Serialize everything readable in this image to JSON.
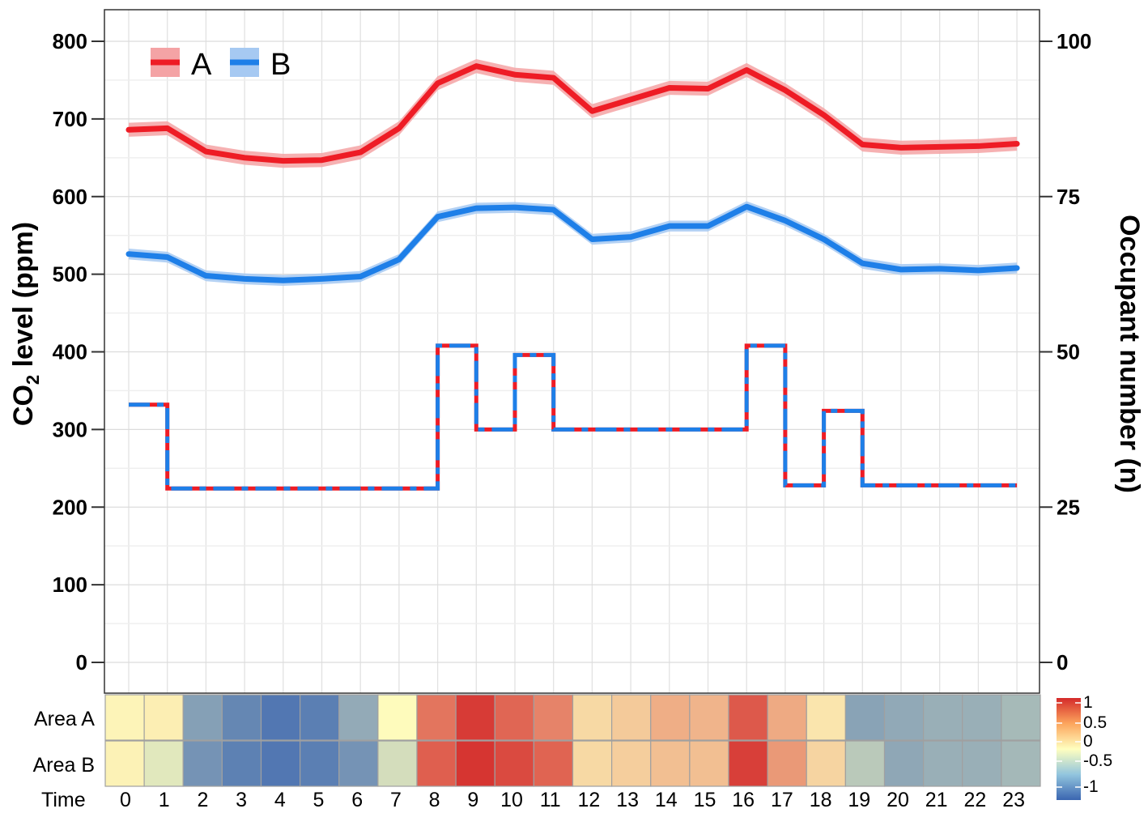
{
  "chart_data": [
    {
      "type": "line",
      "ylabel_main": "CO",
      "ylabel_sub": "2",
      "ylabel_rest": " level (ppm)",
      "y2label": "Occupant number (n)",
      "ylim": [
        0,
        800
      ],
      "y_ticks": [
        "0",
        "100",
        "200",
        "300",
        "400",
        "500",
        "600",
        "700",
        "800"
      ],
      "y2lim": [
        0,
        100
      ],
      "y2_ticks": [
        "0",
        "25",
        "50",
        "75",
        "100"
      ],
      "x": [
        0,
        1,
        2,
        3,
        4,
        5,
        6,
        7,
        8,
        9,
        10,
        11,
        12,
        13,
        14,
        15,
        16,
        17,
        18,
        19,
        20,
        21,
        22,
        23
      ],
      "legend_position": "top-left",
      "grid": true,
      "series": [
        {
          "name": "A",
          "axis": "left",
          "color": "#ee1c25",
          "band_color": "#f4a3a5",
          "values": [
            686,
            688,
            658,
            650,
            646,
            647,
            657,
            688,
            746,
            768,
            757,
            753,
            710,
            725,
            740,
            739,
            763,
            737,
            705,
            667,
            663,
            664,
            665,
            668
          ],
          "band": 9
        },
        {
          "name": "B",
          "axis": "left",
          "color": "#1e7fe8",
          "band_color": "#a6c9f2",
          "values": [
            526,
            522,
            498,
            494,
            492,
            494,
            497,
            519,
            574,
            585,
            586,
            583,
            545,
            548,
            562,
            562,
            587,
            569,
            545,
            514,
            506,
            507,
            505,
            508
          ],
          "band": 7
        }
      ],
      "occupancy": {
        "axis": "right",
        "colors": [
          "#ee1c25",
          "#1e7fe8"
        ],
        "steps": [
          {
            "from": 0,
            "to": 1,
            "value": 41.5
          },
          {
            "from": 1,
            "to": 8,
            "value": 28
          },
          {
            "from": 8,
            "to": 9,
            "value": 51
          },
          {
            "from": 9,
            "to": 10,
            "value": 37.5
          },
          {
            "from": 10,
            "to": 11,
            "value": 49.5
          },
          {
            "from": 11,
            "to": 16,
            "value": 37.5
          },
          {
            "from": 16,
            "to": 17,
            "value": 51
          },
          {
            "from": 17,
            "to": 18,
            "value": 28.5
          },
          {
            "from": 18,
            "to": 19,
            "value": 40.5
          },
          {
            "from": 19,
            "to": 23,
            "value": 28.5
          }
        ]
      }
    },
    {
      "type": "heatmap",
      "x_title": "Time",
      "categories": [
        "0",
        "1",
        "2",
        "3",
        "4",
        "5",
        "6",
        "7",
        "8",
        "9",
        "10",
        "11",
        "12",
        "13",
        "14",
        "15",
        "16",
        "17",
        "18",
        "19",
        "20",
        "21",
        "22",
        "23"
      ],
      "rows": [
        {
          "label": "Area A",
          "values": [
            0.05,
            0.08,
            -0.62,
            -0.78,
            -0.88,
            -0.83,
            -0.55,
            0.02,
            0.65,
            0.92,
            0.72,
            0.58,
            0.18,
            0.25,
            0.38,
            0.35,
            0.78,
            0.4,
            0.12,
            -0.6,
            -0.56,
            -0.52,
            -0.52,
            -0.45
          ]
        },
        {
          "label": "Area B",
          "values": [
            0.06,
            -0.15,
            -0.7,
            -0.82,
            -0.88,
            -0.83,
            -0.7,
            -0.22,
            0.75,
            0.95,
            0.85,
            0.73,
            0.18,
            0.23,
            0.3,
            0.3,
            0.9,
            0.48,
            0.2,
            -0.35,
            -0.57,
            -0.52,
            -0.52,
            -0.46
          ]
        }
      ],
      "colorbar_ticks": [
        "1",
        "0.5",
        "0",
        "-0.5",
        "-1"
      ],
      "scale": [
        "#3a65b0",
        "#ffffbf",
        "#d42a2a"
      ]
    }
  ]
}
